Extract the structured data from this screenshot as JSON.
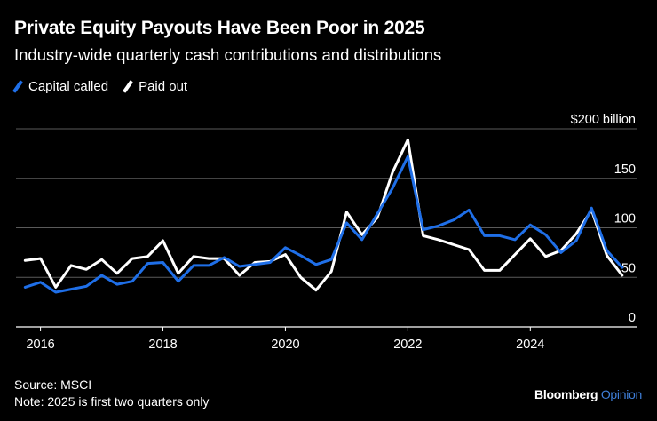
{
  "header": {
    "title": "Private Equity Payouts Have Been Poor in 2025",
    "subtitle": "Industry-wide quarterly cash contributions and distributions"
  },
  "legend": {
    "items": [
      {
        "label": "Capital called",
        "color": "#1f6fe8"
      },
      {
        "label": "Paid out",
        "color": "#ffffff"
      }
    ]
  },
  "footer": {
    "source": "Source: MSCI",
    "note": "Note: 2025 is first two quarters only"
  },
  "brand": {
    "name": "Bloomberg",
    "suffix": "Opinion",
    "suffix_color": "#3f7fd9"
  },
  "chart_data": {
    "type": "line",
    "xlim": [
      2015.6,
      2025.75
    ],
    "ylim": [
      0,
      200
    ],
    "x_ticks": [
      2016,
      2018,
      2020,
      2022,
      2024
    ],
    "y_ticks": [
      0,
      50,
      100,
      150,
      200
    ],
    "y_tick_labels": [
      "0",
      "50",
      "100",
      "150",
      "$200 billion"
    ],
    "grid": true,
    "legend_position": "top-left",
    "x": [
      2015.75,
      2016.0,
      2016.25,
      2016.5,
      2016.75,
      2017.0,
      2017.25,
      2017.5,
      2017.75,
      2018.0,
      2018.25,
      2018.5,
      2018.75,
      2019.0,
      2019.25,
      2019.5,
      2019.75,
      2020.0,
      2020.25,
      2020.5,
      2020.75,
      2021.0,
      2021.25,
      2021.5,
      2021.75,
      2022.0,
      2022.25,
      2022.5,
      2022.75,
      2023.0,
      2023.25,
      2023.5,
      2023.75,
      2024.0,
      2024.25,
      2024.5,
      2024.75,
      2025.0,
      2025.25,
      2025.5
    ],
    "series": [
      {
        "name": "Capital called",
        "color": "#1f6fe8",
        "values": [
          40,
          45,
          35,
          38,
          41,
          52,
          43,
          46,
          64,
          65,
          46,
          62,
          62,
          70,
          61,
          63,
          65,
          80,
          72,
          63,
          68,
          105,
          88,
          114,
          140,
          172,
          98,
          102,
          108,
          118,
          92,
          92,
          88,
          103,
          93,
          75,
          87,
          120,
          77,
          60
        ]
      },
      {
        "name": "Paid out",
        "color": "#ffffff",
        "values": [
          67,
          69,
          40,
          62,
          58,
          68,
          54,
          69,
          71,
          87,
          54,
          71,
          69,
          69,
          52,
          65,
          66,
          73,
          50,
          37,
          56,
          116,
          93,
          110,
          156,
          189,
          92,
          88,
          83,
          78,
          57,
          57,
          73,
          89,
          71,
          77,
          94,
          118,
          72,
          52
        ]
      }
    ]
  }
}
